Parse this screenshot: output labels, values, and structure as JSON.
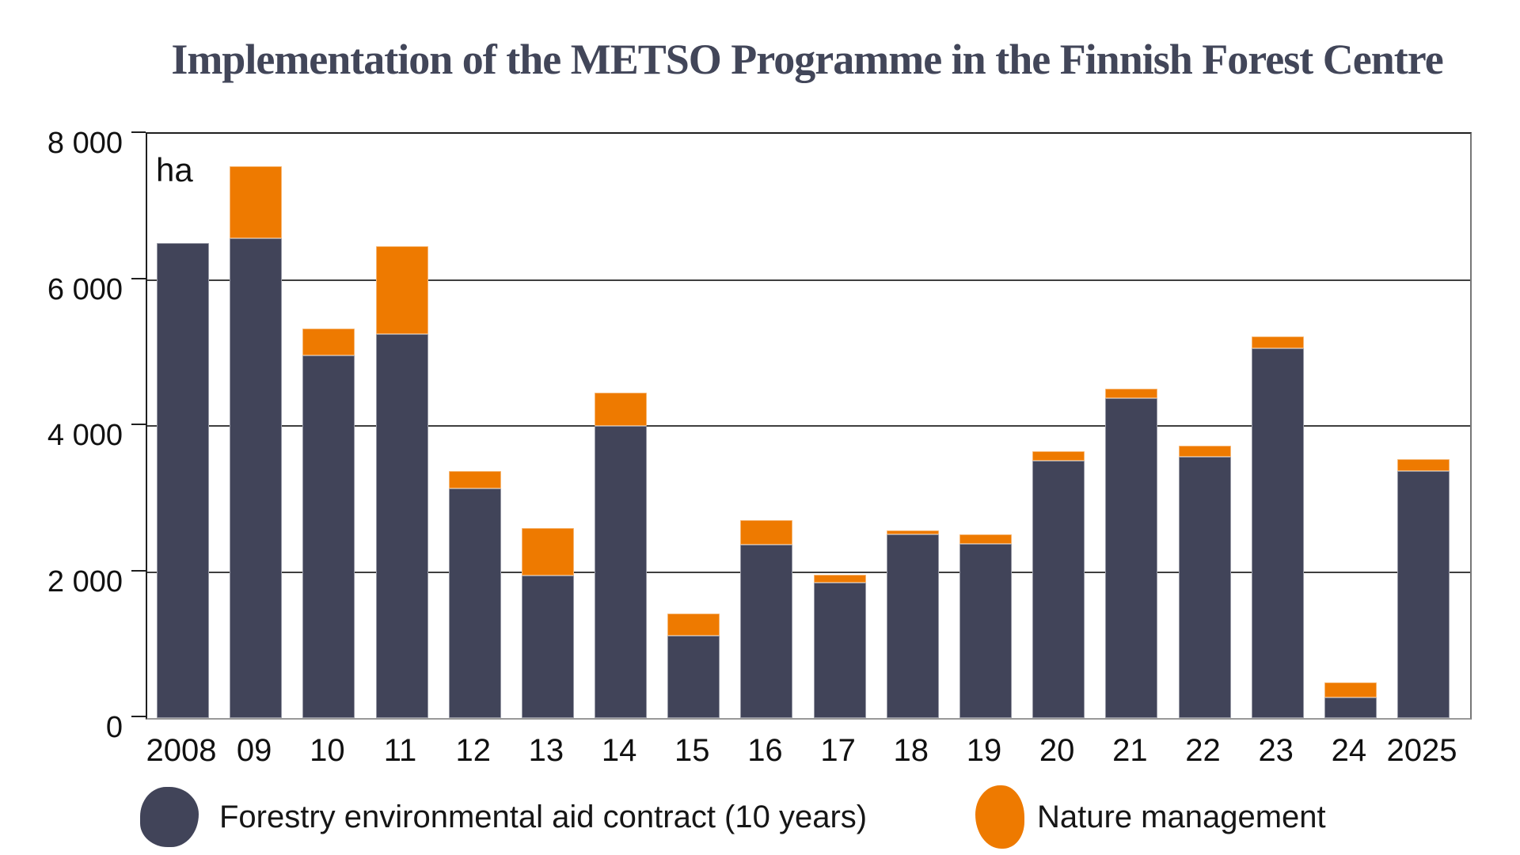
{
  "title": "Implementation of the METSO Programme in the Finnish Forest Centre",
  "unit_label": "ha",
  "chart_data": {
    "type": "bar",
    "stacked": true,
    "title": "Implementation of the METSO Programme in the Finnish Forest Centre",
    "ylabel": "ha",
    "ylim": [
      0,
      8000
    ],
    "ytick_interval": 2000,
    "ytick_labels": [
      "0",
      "2 000",
      "4 000",
      "6 000",
      "8 000"
    ],
    "grid": true,
    "legend_position": "bottom",
    "categories": [
      "2008",
      "09",
      "10",
      "11",
      "12",
      "13",
      "14",
      "15",
      "16",
      "17",
      "18",
      "19",
      "20",
      "21",
      "22",
      "23",
      "24",
      "2025"
    ],
    "series": [
      {
        "name": "Forestry environmental aid contract (10 years)",
        "color": "#414459",
        "values": [
          6500,
          6570,
          4970,
          5260,
          3140,
          1950,
          4000,
          1130,
          2370,
          1850,
          2520,
          2390,
          3520,
          4380,
          3580,
          5060,
          280,
          3380
        ]
      },
      {
        "name": "Nature management",
        "color": "#EE7A00",
        "values": [
          0,
          990,
          360,
          1200,
          240,
          655,
          460,
          300,
          340,
          115,
          50,
          120,
          130,
          130,
          150,
          165,
          210,
          160
        ]
      }
    ]
  },
  "legend": {
    "items": [
      {
        "label": "Forestry environmental aid contract (10 years)",
        "color": "#414459"
      },
      {
        "label": "Nature management",
        "color": "#EE7A00"
      }
    ]
  }
}
